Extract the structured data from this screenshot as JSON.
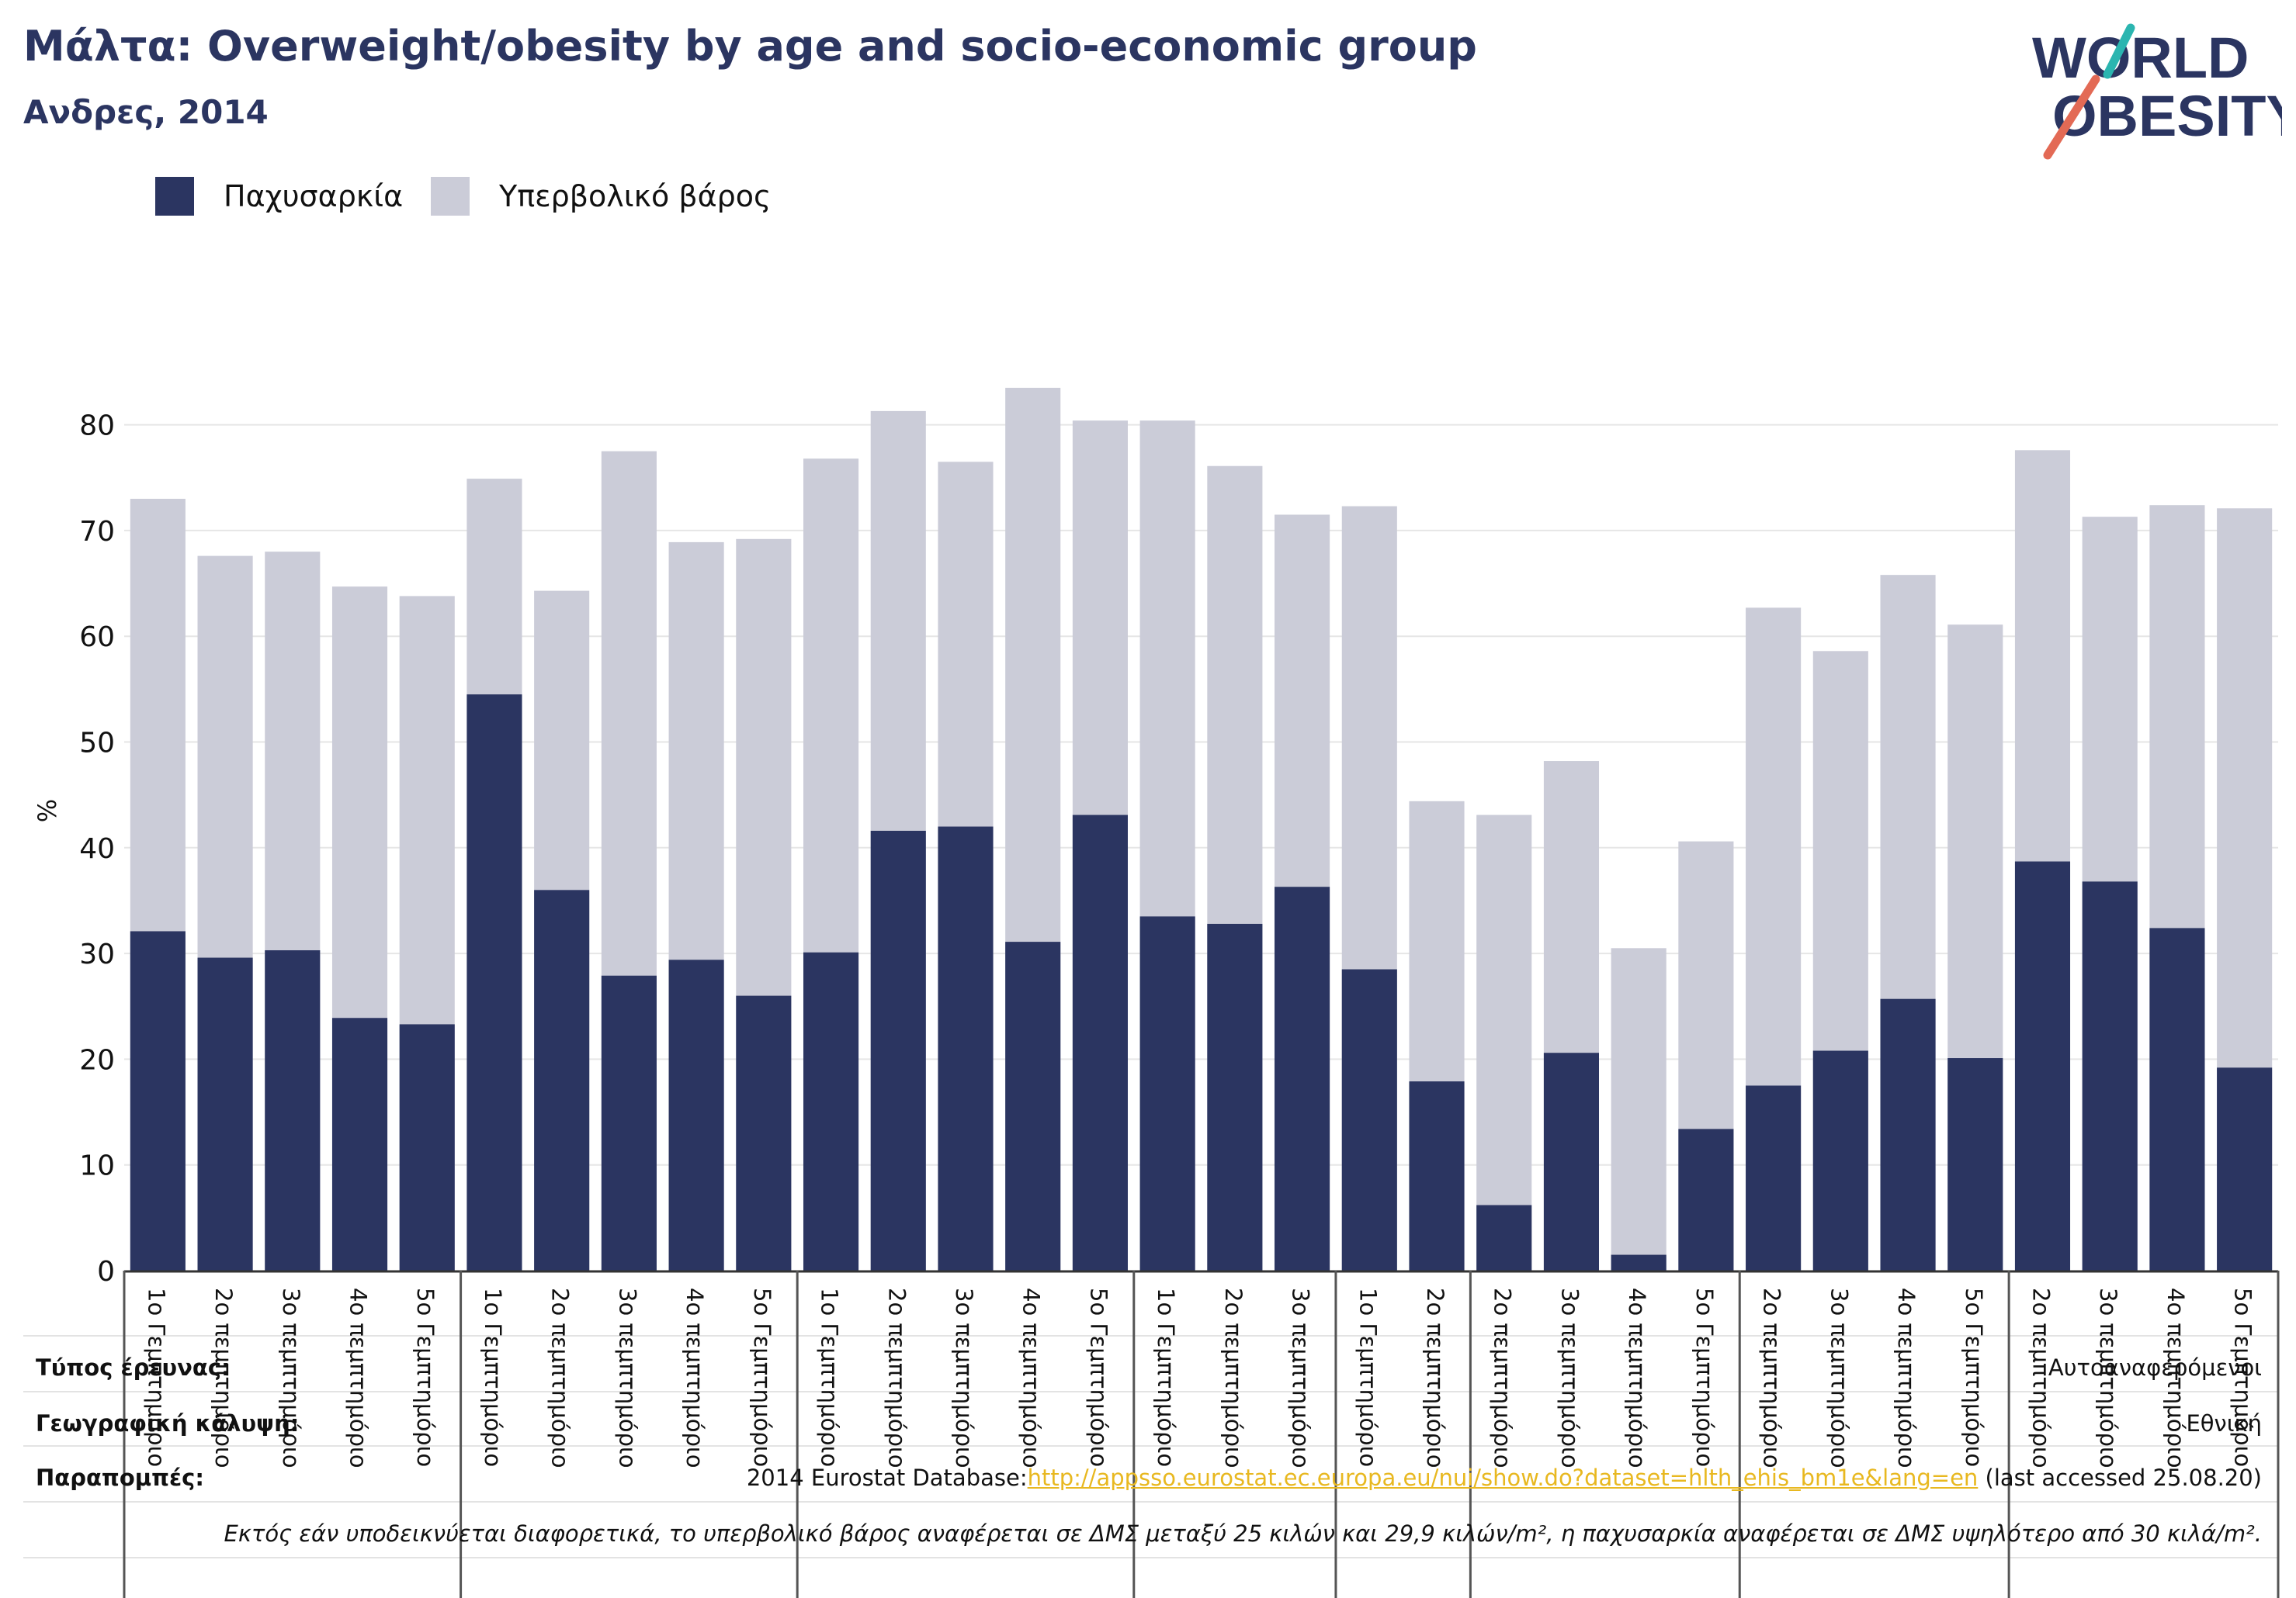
{
  "title": "Μάλτα: Overweight/obesity by age and socio-economic group",
  "subtitle": "Ανδρες, 2014",
  "logo": {
    "line1": "WORLD",
    "line2": "OBESITY",
    "icon": "world-obesity-logo"
  },
  "legend": [
    {
      "label": "Παχυσαρκία",
      "color": "#2b3561"
    },
    {
      "label": "Υπερβολικό βάρος",
      "color": "#cbccd8"
    }
  ],
  "chart_data": {
    "type": "bar",
    "stacked": false,
    "ylabel": "%",
    "ylim": [
      0,
      90
    ],
    "yticks": [
      0,
      10,
      20,
      30,
      40,
      50,
      60,
      70,
      80
    ],
    "grid": true,
    "legend_position": "top-left",
    "categories": [
      "1ο Γεμπτημόριο",
      "2ο πεμπτημόριο",
      "3ο πεμπτημόριο",
      "4ο πεμπτημόριο",
      "5ο Γεμπτημόριο",
      "1ο Γεμπτημόριο",
      "2ο πεμπτημόριο",
      "3ο πεμπτημόριο",
      "4ο πεμπτημόριο",
      "5ο Γεμπτημόριο",
      "1ο Γεμπτημόριο",
      "2ο πεμπτημόριο",
      "3ο πεμπτημόριο",
      "4ο πεμπτημόριο",
      "5ο Γεμπτημόριο",
      "1ο Γεμπτημόριο",
      "2ο πεμπτημόριο",
      "3ο πεμπτημόριο",
      "1ο Γεμπτημόριο",
      "2ο πεμπτημόριο",
      "2ο πεμπτημόριο",
      "3ο πεμπτημόριο",
      "4ο πεμπτημόριο",
      "5ο Γεμπτημόριο",
      "2ο πεμπτημόριο",
      "3ο πεμπτημόριο",
      "4ο πεμπτημόριο",
      "5ο Γεμπτημόριο",
      "2ο πεμπτημόριο",
      "3ο πεμπτημόριο",
      "4ο πεμπτημόριο",
      "5ο Γεμπτημόριο"
    ],
    "series": [
      {
        "name": "Υπερβολικό βάρος",
        "color": "#cbccd8",
        "values": [
          73.0,
          67.6,
          68.0,
          64.7,
          63.8,
          74.9,
          64.3,
          77.5,
          68.9,
          69.2,
          76.8,
          81.3,
          76.5,
          83.5,
          80.4,
          80.4,
          76.1,
          71.5,
          72.3,
          44.4,
          43.1,
          48.2,
          30.5,
          40.6,
          62.7,
          58.6,
          65.8,
          61.1,
          77.6,
          71.3,
          72.4,
          72.1
        ]
      },
      {
        "name": "Παχυσαρκία",
        "color": "#2b3561",
        "values": [
          32.1,
          29.6,
          30.3,
          23.9,
          23.3,
          54.5,
          36.0,
          27.9,
          29.4,
          26.0,
          30.1,
          41.6,
          42.0,
          31.1,
          43.1,
          33.5,
          32.8,
          36.3,
          28.5,
          17.9,
          6.2,
          20.6,
          1.5,
          13.4,
          17.5,
          20.8,
          25.7,
          20.1,
          38.7,
          36.8,
          32.4,
          19.2
        ]
      }
    ],
    "group_separators_after": [
      4,
      9,
      14,
      17,
      19,
      23,
      27
    ]
  },
  "footer": {
    "survey_type_label": "Τύπος έρευνας:",
    "survey_type_value": "Αυτοαναφερόμενοι",
    "coverage_label": "Γεωγραφική κάλυψη:",
    "coverage_value": "Εθνική",
    "references_label": "Παραπομπές:",
    "references_prefix": "2014 Eurostat Database:",
    "references_link": "http://appsso.eurostat.ec.europa.eu/nui/show.do?dataset=hlth_ehis_bm1e&lang=en",
    "references_suffix": " (last accessed 25.08.20)",
    "note": "Εκτός εάν υποδεικνύεται διαφορετικά, το υπερβολικό βάρος αναφέρεται σε ΔΜΣ μεταξύ 25 κιλών και 29,9 κιλών/m², η παχυσαρκία αναφέρεται σε ΔΜΣ υψηλότερο από 30 κιλά/m²."
  }
}
